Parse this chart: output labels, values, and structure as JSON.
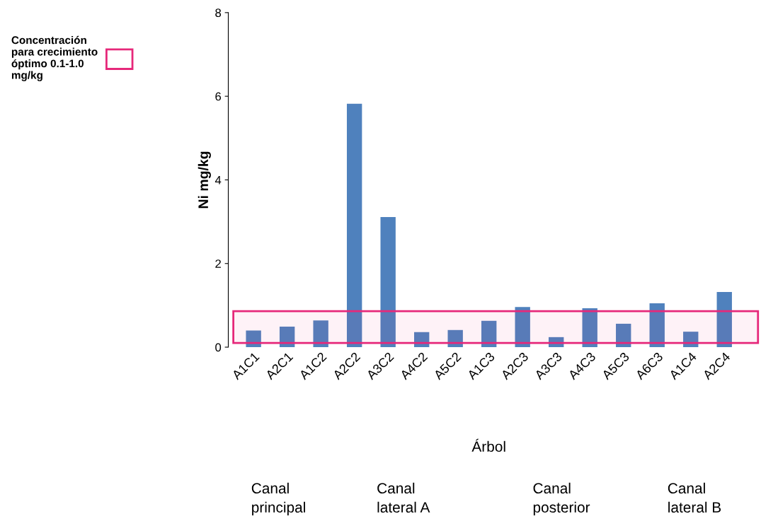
{
  "chart_data": {
    "type": "bar",
    "xlabel": "Árbol",
    "ylabel": "Ni mg/kg",
    "categories": [
      "A1C1",
      "A2C1",
      "A1C2",
      "A2C2",
      "A3C2",
      "A4C2",
      "A5C2",
      "A1C3",
      "A2C3",
      "A3C3",
      "A4C3",
      "A5C3",
      "A6C3",
      "A1C4",
      "A2C4"
    ],
    "values": [
      0.4,
      0.49,
      0.64,
      5.82,
      3.11,
      0.36,
      0.41,
      0.63,
      0.96,
      0.24,
      0.93,
      0.56,
      1.05,
      0.37,
      1.32
    ],
    "color": "#4f81bd",
    "ylim": [
      0,
      8
    ],
    "yticks": [
      0,
      2,
      4,
      6,
      8
    ],
    "grid": false,
    "legend": "top left",
    "bands": [
      {
        "axis": "y",
        "from": 0.1,
        "to": 0.86,
        "label": "Concentración para crecimiento óptimo 0.1-1.0 mg/kg",
        "color": "#e6287a"
      }
    ],
    "annotations": [
      "Canal principal",
      "Canal lateral A",
      "Canal posterior",
      "Canal lateral B"
    ]
  }
}
